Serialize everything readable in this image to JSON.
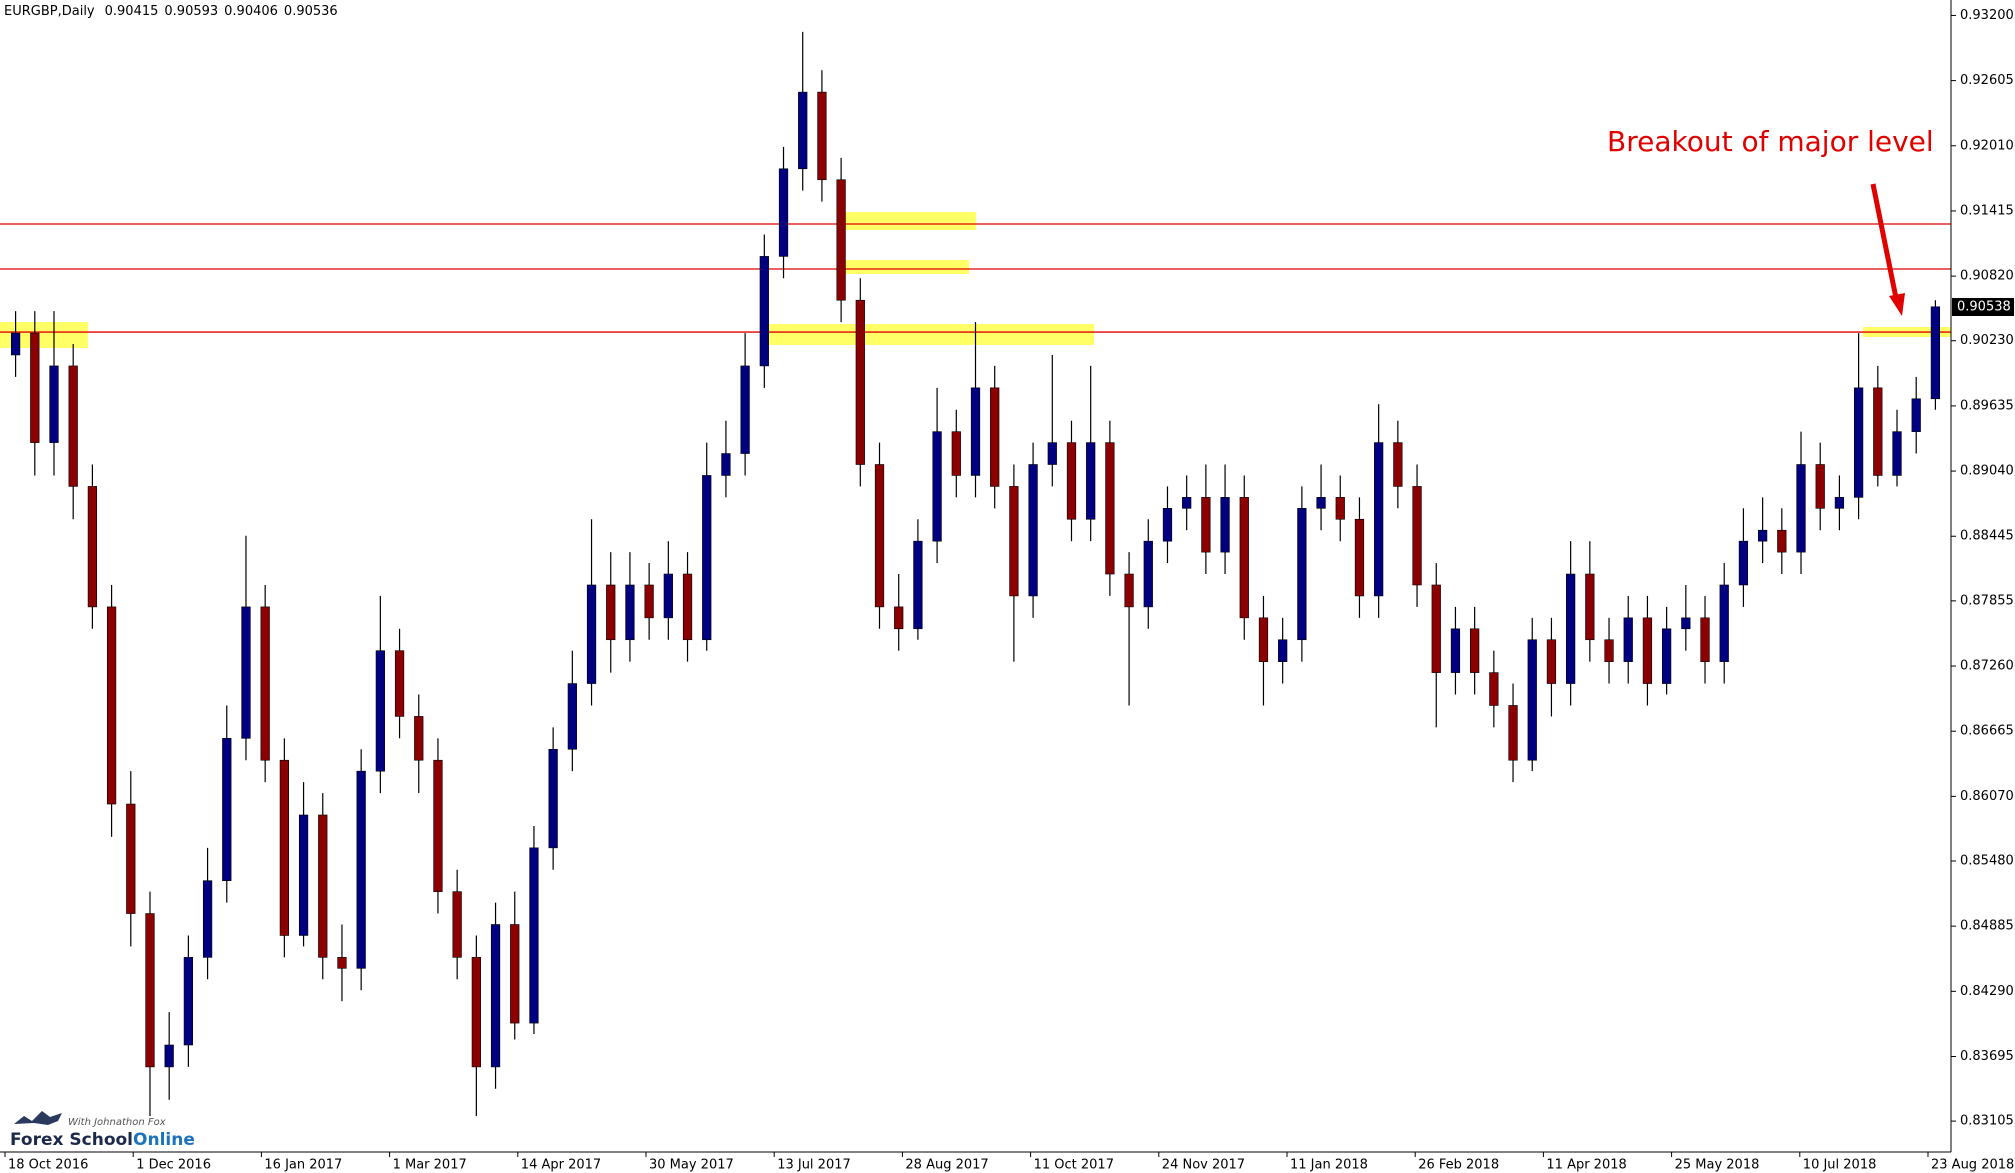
{
  "chart_data": {
    "type": "candlestick",
    "symbol": "EURGBP,Daily",
    "header_ohlc": [
      0.90415,
      0.90593,
      0.90406,
      0.90536
    ],
    "annotation": "Breakout of major level",
    "current_price": 0.90538,
    "levels": [
      0.91296,
      0.90885,
      0.90309
    ],
    "level_color": "#e00000",
    "bull_color": "#000080",
    "bear_color": "#8b0000",
    "ylim": [
      0.82823,
      0.93341
    ],
    "yticks": [
      {
        "value": 0.932,
        "label": "0.93200"
      },
      0.92605,
      {
        "value": 0.9201,
        "label": "0.92010"
      },
      0.91415,
      {
        "value": 0.9082,
        "label": "0.90820"
      },
      {
        "value": 0.9023,
        "label": "0.90230"
      },
      0.89635,
      {
        "value": 0.8904,
        "label": "0.89040"
      },
      0.88445,
      0.87855,
      {
        "value": 0.8726,
        "label": "0.87260"
      },
      0.86665,
      {
        "value": 0.8607,
        "label": "0.86070"
      },
      {
        "value": 0.8548,
        "label": "0.85480"
      },
      0.84885,
      {
        "value": 0.8429,
        "label": "0.84290"
      },
      0.83695,
      0.83105
    ],
    "xtick_labels": [
      "18 Oct 2016",
      "1 Dec 2016",
      "16 Jan 2017",
      "1 Mar 2017",
      "14 Apr 2017",
      "30 May 2017",
      "13 Jul 2017",
      "28 Aug 2017",
      "11 Oct 2017",
      "24 Nov 2017",
      "11 Jan 2018",
      "26 Feb 2018",
      "11 Apr 2018",
      "25 May 2018",
      "10 Jul 2018",
      "23 Aug 2018"
    ],
    "open": [
      0.901,
      0.903,
      0.893,
      0.9,
      0.889,
      0.878,
      0.86,
      0.85,
      0.836,
      0.838,
      0.846,
      0.853,
      0.866,
      0.878,
      0.864,
      0.848,
      0.859,
      0.846,
      0.845,
      0.863,
      0.874,
      0.868,
      0.864,
      0.852,
      0.846,
      0.836,
      0.849,
      0.84,
      0.856,
      0.865,
      0.871,
      0.88,
      0.875,
      0.88,
      0.877,
      0.881,
      0.875,
      0.89,
      0.892,
      0.9,
      0.91,
      0.918,
      0.925,
      0.917,
      0.906,
      0.891,
      0.878,
      0.876,
      0.884,
      0.894,
      0.89,
      0.898,
      0.889,
      0.879,
      0.891,
      0.893,
      0.886,
      0.893,
      0.881,
      0.878,
      0.884,
      0.887,
      0.888,
      0.883,
      0.888,
      0.877,
      0.873,
      0.875,
      0.887,
      0.888,
      0.886,
      0.879,
      0.893,
      0.889,
      0.88,
      0.872,
      0.876,
      0.872,
      0.869,
      0.864,
      0.875,
      0.871,
      0.881,
      0.875,
      0.873,
      0.877,
      0.871,
      0.876,
      0.877,
      0.873,
      0.88,
      0.884,
      0.885,
      0.883,
      0.891,
      0.887,
      0.888,
      0.898,
      0.89,
      0.894,
      0.897
    ],
    "high": [
      0.905,
      0.905,
      0.905,
      0.902,
      0.891,
      0.88,
      0.863,
      0.852,
      0.841,
      0.848,
      0.856,
      0.869,
      0.8845,
      0.88,
      0.866,
      0.862,
      0.861,
      0.849,
      0.865,
      0.879,
      0.876,
      0.87,
      0.866,
      0.854,
      0.848,
      0.851,
      0.852,
      0.858,
      0.867,
      0.874,
      0.886,
      0.883,
      0.883,
      0.882,
      0.884,
      0.883,
      0.893,
      0.895,
      0.903,
      0.912,
      0.92,
      0.9305,
      0.927,
      0.919,
      0.908,
      0.893,
      0.881,
      0.886,
      0.898,
      0.896,
      0.904,
      0.9,
      0.891,
      0.893,
      0.901,
      0.895,
      0.9,
      0.895,
      0.883,
      0.886,
      0.889,
      0.89,
      0.891,
      0.891,
      0.89,
      0.879,
      0.877,
      0.889,
      0.891,
      0.89,
      0.888,
      0.8965,
      0.895,
      0.891,
      0.882,
      0.878,
      0.878,
      0.874,
      0.871,
      0.877,
      0.877,
      0.884,
      0.884,
      0.877,
      0.879,
      0.879,
      0.878,
      0.88,
      0.879,
      0.882,
      0.887,
      0.888,
      0.887,
      0.894,
      0.893,
      0.89,
      0.903,
      0.9,
      0.896,
      0.899,
      0.906
    ],
    "low": [
      0.899,
      0.89,
      0.89,
      0.886,
      0.876,
      0.857,
      0.847,
      0.8315,
      0.833,
      0.836,
      0.844,
      0.851,
      0.864,
      0.862,
      0.846,
      0.847,
      0.844,
      0.842,
      0.843,
      0.861,
      0.866,
      0.861,
      0.85,
      0.844,
      0.8315,
      0.834,
      0.8385,
      0.839,
      0.854,
      0.863,
      0.869,
      0.872,
      0.873,
      0.875,
      0.875,
      0.873,
      0.874,
      0.888,
      0.89,
      0.898,
      0.908,
      0.916,
      0.915,
      0.904,
      0.889,
      0.876,
      0.874,
      0.875,
      0.882,
      0.888,
      0.888,
      0.887,
      0.873,
      0.877,
      0.889,
      0.884,
      0.884,
      0.879,
      0.869,
      0.876,
      0.882,
      0.885,
      0.881,
      0.881,
      0.875,
      0.869,
      0.871,
      0.873,
      0.885,
      0.884,
      0.877,
      0.877,
      0.887,
      0.878,
      0.867,
      0.87,
      0.87,
      0.867,
      0.862,
      0.863,
      0.868,
      0.869,
      0.873,
      0.871,
      0.871,
      0.869,
      0.87,
      0.874,
      0.871,
      0.871,
      0.878,
      0.882,
      0.881,
      0.881,
      0.885,
      0.885,
      0.886,
      0.889,
      0.889,
      0.892,
      0.896
    ],
    "close": [
      0.903,
      0.893,
      0.9,
      0.889,
      0.878,
      0.86,
      0.85,
      0.836,
      0.838,
      0.846,
      0.853,
      0.866,
      0.878,
      0.864,
      0.848,
      0.859,
      0.846,
      0.845,
      0.863,
      0.874,
      0.868,
      0.864,
      0.852,
      0.846,
      0.836,
      0.849,
      0.84,
      0.856,
      0.865,
      0.871,
      0.88,
      0.875,
      0.88,
      0.877,
      0.881,
      0.875,
      0.89,
      0.892,
      0.9,
      0.91,
      0.918,
      0.925,
      0.917,
      0.906,
      0.891,
      0.878,
      0.876,
      0.884,
      0.894,
      0.89,
      0.898,
      0.889,
      0.879,
      0.891,
      0.893,
      0.886,
      0.893,
      0.881,
      0.878,
      0.884,
      0.887,
      0.888,
      0.883,
      0.888,
      0.877,
      0.873,
      0.875,
      0.887,
      0.888,
      0.886,
      0.879,
      0.893,
      0.889,
      0.88,
      0.872,
      0.876,
      0.872,
      0.869,
      0.864,
      0.875,
      0.871,
      0.881,
      0.875,
      0.873,
      0.877,
      0.871,
      0.876,
      0.877,
      0.873,
      0.88,
      0.884,
      0.885,
      0.883,
      0.891,
      0.887,
      0.888,
      0.898,
      0.89,
      0.894,
      0.897,
      0.9054
    ]
  },
  "logo": {
    "name": "Forex School",
    "suffix": "Online",
    "tagline": "With Johnathon Fox"
  }
}
